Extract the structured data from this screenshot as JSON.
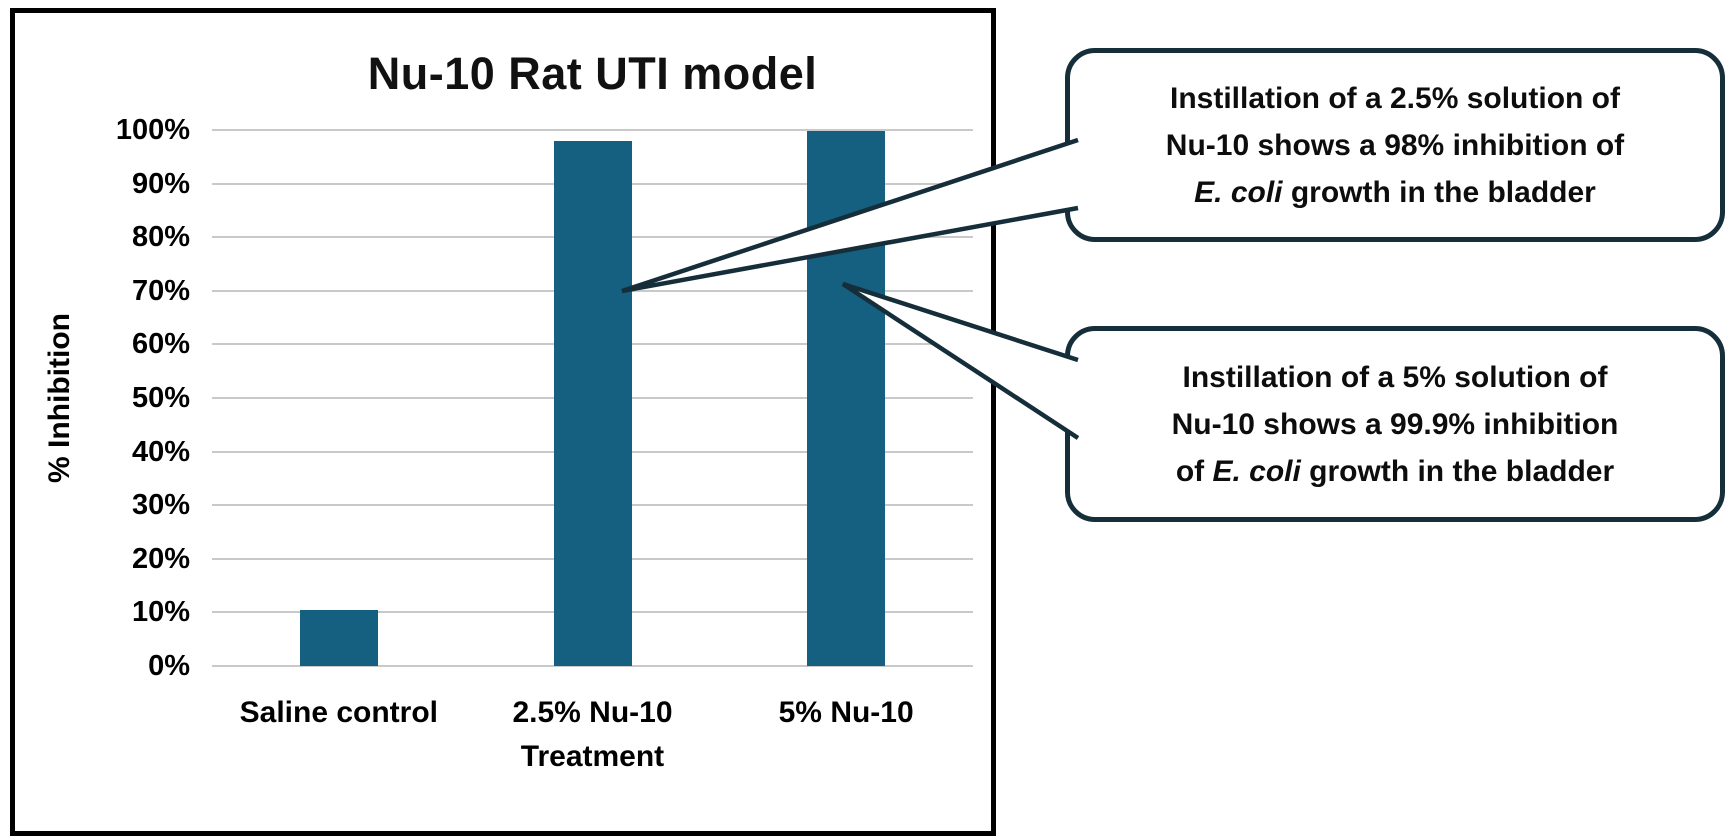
{
  "chart_data": {
    "type": "bar",
    "title": "Nu-10 Rat UTI model",
    "xlabel": "Treatment",
    "ylabel": "% Inhibition",
    "categories": [
      "Saline control",
      "2.5% Nu-10",
      "5% Nu-10"
    ],
    "values": [
      10.5,
      98,
      99.9
    ],
    "ylim": [
      0,
      100
    ],
    "ytick_step": 10,
    "ytick_labels": [
      "0%",
      "10%",
      "20%",
      "30%",
      "40%",
      "50%",
      "60%",
      "70%",
      "80%",
      "90%",
      "100%"
    ],
    "grid": true,
    "legend": false,
    "bar_color": "#155F80",
    "gridline_color": "#c9c9c9"
  },
  "callouts": [
    {
      "line1": "Instillation of a 2.5% solution of",
      "line2": "Nu-10 shows a 98% inhibition of",
      "line3_pre": "",
      "line3_italic": "E. coli",
      "line3_post": " growth in the bladder"
    },
    {
      "line1": "Instillation of a 5% solution of",
      "line2": "Nu-10 shows a 99.9% inhibition",
      "line3_pre": "of ",
      "line3_italic": "E. coli",
      "line3_post": " growth in the bladder"
    }
  ],
  "colors": {
    "bar": "#155F80",
    "callout_border": "#152e3a",
    "gridline": "#c9c9c9",
    "frame_border": "#000000"
  }
}
